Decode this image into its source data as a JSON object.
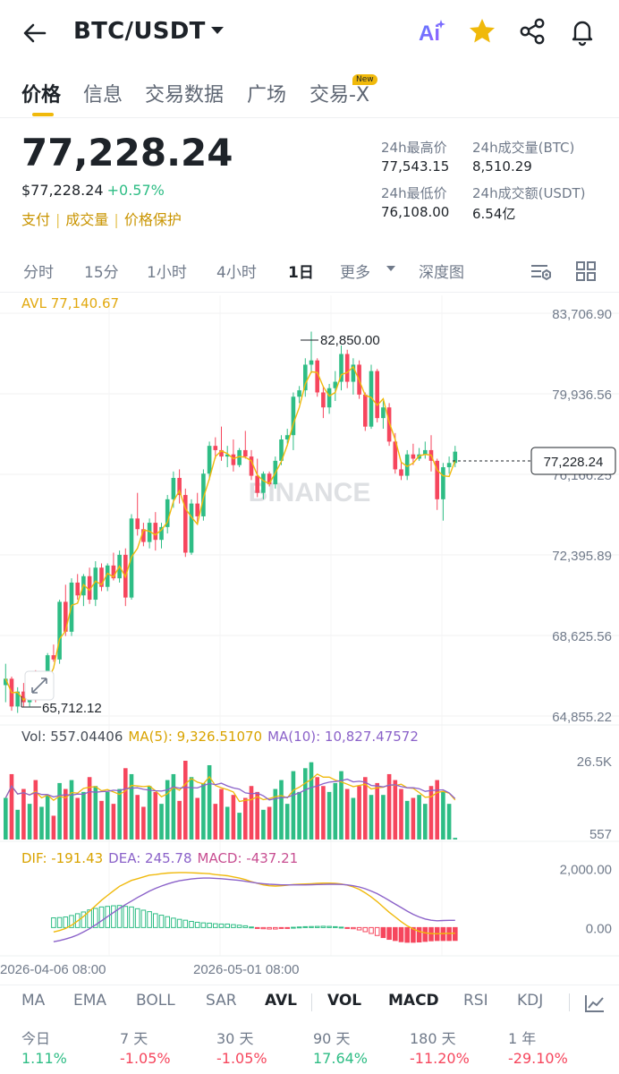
{
  "header": {
    "pair": "BTC/USDT",
    "icons": [
      "back-arrow-icon",
      "ai-icon",
      "star-icon",
      "share-icon",
      "bell-icon"
    ],
    "ai_label": "Ai"
  },
  "tabs": [
    {
      "label": "价格",
      "active": true
    },
    {
      "label": "信息"
    },
    {
      "label": "交易数据"
    },
    {
      "label": "广场"
    },
    {
      "label": "交易-X"
    }
  ],
  "new_badge": "New",
  "price": {
    "last": "77,228.24",
    "usd": "$77,228.24",
    "change": "+0.57%",
    "links": [
      "支付",
      "成交量",
      "价格保护"
    ]
  },
  "stats": {
    "high_label": "24h最高价",
    "high": "77,543.15",
    "low_label": "24h最低价",
    "low": "76,108.00",
    "vol_btc_label": "24h成交量(BTC)",
    "vol_btc": "8,510.29",
    "vol_usdt_label": "24h成交额(USDT)",
    "vol_usdt": "6.54亿"
  },
  "intervals": [
    "分时",
    "15分",
    "1小时",
    "4小时",
    "1日",
    "更多",
    "深度图"
  ],
  "active_interval": "1日",
  "chart_labels": {
    "avl": "AVL 77,140.67",
    "price_axis": [
      "83,706.90",
      "79,936.56",
      "76,166.25",
      "72,395.89",
      "68,625.56",
      "64,855.22"
    ],
    "current_price_tag": "77,228.24",
    "high_marker": "82,850.00",
    "low_marker": "65,712.12",
    "watermark": "BINANCE",
    "vol_text": "Vol: 557.04406",
    "vol_ma5": "MA(5): 9,326.51070",
    "vol_ma10": "MA(10): 10,827.47572",
    "vol_axis": [
      "26.5K",
      "557"
    ],
    "macd_dif": "DIF: -191.43",
    "macd_dea": "DEA: 245.78",
    "macd_val": "MACD: -437.21",
    "macd_axis": [
      "2,000.00",
      "0.00"
    ],
    "dates": [
      "2026-04-06 08:00",
      "2026-05-01 08:00"
    ]
  },
  "chart_data": {
    "type": "candlestick",
    "interval": "1日",
    "ylim": [
      64855.22,
      83706.9
    ],
    "avl": 77140.67,
    "current": 77228.24,
    "high_marker": 82850.0,
    "low_marker": 65712.12,
    "up_color": "#2ebd85",
    "down_color": "#f6465d",
    "avl_color": "#f0b90b",
    "ma5_color": "#f0b90b",
    "ma10_color": "#8b62c9",
    "dif_color": "#f0b90b",
    "dea_color": "#8b62c9",
    "candles": [
      [
        66300,
        67300,
        65500,
        66600
      ],
      [
        66600,
        66700,
        65100,
        65300
      ],
      [
        65300,
        66200,
        65000,
        66000
      ],
      [
        66000,
        66400,
        65300,
        65500
      ],
      [
        65500,
        66500,
        65300,
        66300
      ],
      [
        66300,
        67000,
        65500,
        65700
      ],
      [
        65700,
        66400,
        65600,
        66100
      ],
      [
        66100,
        67800,
        65900,
        67700
      ],
      [
        67700,
        68200,
        67400,
        67500
      ],
      [
        67500,
        70300,
        67300,
        70200
      ],
      [
        70200,
        71000,
        68600,
        68800
      ],
      [
        68800,
        71300,
        68600,
        71100
      ],
      [
        71100,
        71500,
        70300,
        70500
      ],
      [
        70500,
        71500,
        70000,
        71400
      ],
      [
        71400,
        71800,
        70100,
        70300
      ],
      [
        70300,
        72100,
        70000,
        71800
      ],
      [
        71800,
        72000,
        70700,
        70900
      ],
      [
        70900,
        72000,
        70700,
        71900
      ],
      [
        71900,
        72500,
        71200,
        71300
      ],
      [
        71300,
        72600,
        71100,
        72400
      ],
      [
        72400,
        72700,
        70000,
        70400
      ],
      [
        70400,
        74300,
        70300,
        74100
      ],
      [
        74100,
        75300,
        73300,
        73600
      ],
      [
        73600,
        73900,
        72800,
        73000
      ],
      [
        73000,
        74100,
        72700,
        73900
      ],
      [
        73900,
        74400,
        72600,
        73100
      ],
      [
        73100,
        73900,
        72700,
        73700
      ],
      [
        73700,
        75200,
        73400,
        75000
      ],
      [
        75000,
        76300,
        74600,
        76000
      ],
      [
        76000,
        76400,
        74800,
        75200
      ],
      [
        75200,
        75500,
        72300,
        72500
      ],
      [
        72500,
        75000,
        72400,
        74800
      ],
      [
        74800,
        75300,
        73900,
        74200
      ],
      [
        74200,
        76400,
        74000,
        76200
      ],
      [
        76200,
        77700,
        75900,
        77500
      ],
      [
        77500,
        77900,
        76900,
        77300
      ],
      [
        77300,
        78400,
        76800,
        77000
      ],
      [
        77000,
        77500,
        76500,
        77100
      ],
      [
        77100,
        77800,
        76300,
        76600
      ],
      [
        76600,
        77400,
        76500,
        77300
      ],
      [
        77300,
        78200,
        76900,
        77000
      ],
      [
        77000,
        77300,
        75900,
        76100
      ],
      [
        76100,
        76900,
        75100,
        75300
      ],
      [
        75300,
        76300,
        75000,
        76200
      ],
      [
        76200,
        76300,
        75600,
        75700
      ],
      [
        75700,
        77000,
        75500,
        76800
      ],
      [
        76800,
        78000,
        76600,
        77800
      ],
      [
        77800,
        78300,
        77600,
        78000
      ],
      [
        78000,
        80000,
        77300,
        79800
      ],
      [
        79800,
        80300,
        79500,
        80100
      ],
      [
        80100,
        81600,
        79800,
        81300
      ],
      [
        81300,
        82850,
        80900,
        81500
      ],
      [
        81500,
        81600,
        79800,
        80000
      ],
      [
        80000,
        80300,
        78800,
        79300
      ],
      [
        79300,
        80400,
        79000,
        80200
      ],
      [
        80200,
        81000,
        79600,
        80500
      ],
      [
        80500,
        82200,
        80100,
        81800
      ],
      [
        81800,
        82000,
        80200,
        80500
      ],
      [
        80500,
        81600,
        79900,
        81300
      ],
      [
        81300,
        81500,
        79700,
        79900
      ],
      [
        79900,
        80000,
        78200,
        78400
      ],
      [
        78400,
        81300,
        78300,
        81000
      ],
      [
        81000,
        81100,
        78600,
        78800
      ],
      [
        78800,
        79600,
        78300,
        79300
      ],
      [
        79300,
        79500,
        77500,
        77700
      ],
      [
        77700,
        78100,
        76200,
        76400
      ],
      [
        76400,
        76800,
        75900,
        76100
      ],
      [
        76100,
        77300,
        75900,
        77100
      ],
      [
        77100,
        77600,
        76600,
        76900
      ],
      [
        76900,
        77400,
        76800,
        77100
      ],
      [
        77100,
        77700,
        76900,
        77300
      ],
      [
        77300,
        78000,
        76300,
        76800
      ],
      [
        76800,
        76900,
        74500,
        75000
      ],
      [
        75000,
        76700,
        74000,
        76500
      ],
      [
        76500,
        77000,
        76200,
        76700
      ],
      [
        76700,
        77500,
        76500,
        77228
      ]
    ],
    "volume_ylim": [
      557,
      26500
    ],
    "volumes": [
      14000,
      22000,
      10000,
      17000,
      12000,
      20000,
      11000,
      15000,
      8000,
      19000,
      17000,
      20000,
      14000,
      16000,
      21000,
      18000,
      13000,
      16000,
      12000,
      17000,
      24000,
      22000,
      15000,
      11000,
      18000,
      16000,
      12000,
      20000,
      22000,
      13000,
      26500,
      21000,
      14000,
      19000,
      25000,
      12000,
      17000,
      11000,
      15000,
      9000,
      14000,
      18000,
      16000,
      10000,
      11000,
      17000,
      20000,
      12000,
      23000,
      16000,
      24000,
      26000,
      21000,
      18000,
      16000,
      19000,
      23000,
      17000,
      14000,
      18000,
      21000,
      15000,
      19000,
      15000,
      22000,
      20000,
      17000,
      13000,
      14000,
      15000,
      12000,
      18000,
      20000,
      16000,
      12000,
      557
    ],
    "macd_ylim": [
      -900,
      2200
    ],
    "dif": [
      -150,
      -100,
      -30,
      80,
      220,
      380,
      560,
      740,
      930,
      1090,
      1250,
      1400,
      1500,
      1600,
      1660,
      1720,
      1780,
      1800,
      1830,
      1850,
      1860,
      1870,
      1870,
      1860,
      1850,
      1840,
      1830,
      1800,
      1780,
      1760,
      1720,
      1680,
      1630,
      1560,
      1500,
      1450,
      1420,
      1410,
      1420,
      1440,
      1460,
      1470,
      1480,
      1490,
      1500,
      1510,
      1510,
      1500,
      1480,
      1440,
      1380,
      1300,
      1180,
      1040,
      880,
      700,
      520,
      360,
      200,
      60,
      -50,
      -130,
      -180,
      -200,
      -210,
      -200,
      -195,
      -191
    ],
    "dea": [
      -480,
      -440,
      -390,
      -330,
      -250,
      -150,
      -40,
      90,
      230,
      370,
      510,
      650,
      780,
      900,
      1020,
      1130,
      1240,
      1330,
      1410,
      1480,
      1540,
      1590,
      1620,
      1650,
      1670,
      1680,
      1680,
      1670,
      1660,
      1640,
      1620,
      1600,
      1570,
      1540,
      1510,
      1490,
      1470,
      1460,
      1450,
      1450,
      1450,
      1450,
      1450,
      1455,
      1460,
      1465,
      1470,
      1470,
      1465,
      1450,
      1420,
      1380,
      1320,
      1240,
      1150,
      1040,
      920,
      800,
      680,
      560,
      450,
      360,
      290,
      250,
      230,
      240,
      245,
      246
    ]
  },
  "indicators": [
    "MA",
    "EMA",
    "BOLL",
    "SAR",
    "AVL",
    "VOL",
    "MACD",
    "RSI",
    "KDJ"
  ],
  "performance": [
    {
      "label": "今日",
      "value": "1.11%",
      "dir": "up"
    },
    {
      "label": "7 天",
      "value": "-1.05%",
      "dir": "down"
    },
    {
      "label": "30 天",
      "value": "-1.05%",
      "dir": "down"
    },
    {
      "label": "90 天",
      "value": "17.64%",
      "dir": "up"
    },
    {
      "label": "180 天",
      "value": "-11.20%",
      "dir": "down"
    },
    {
      "label": "1 年",
      "value": "-29.10%",
      "dir": "down"
    }
  ]
}
